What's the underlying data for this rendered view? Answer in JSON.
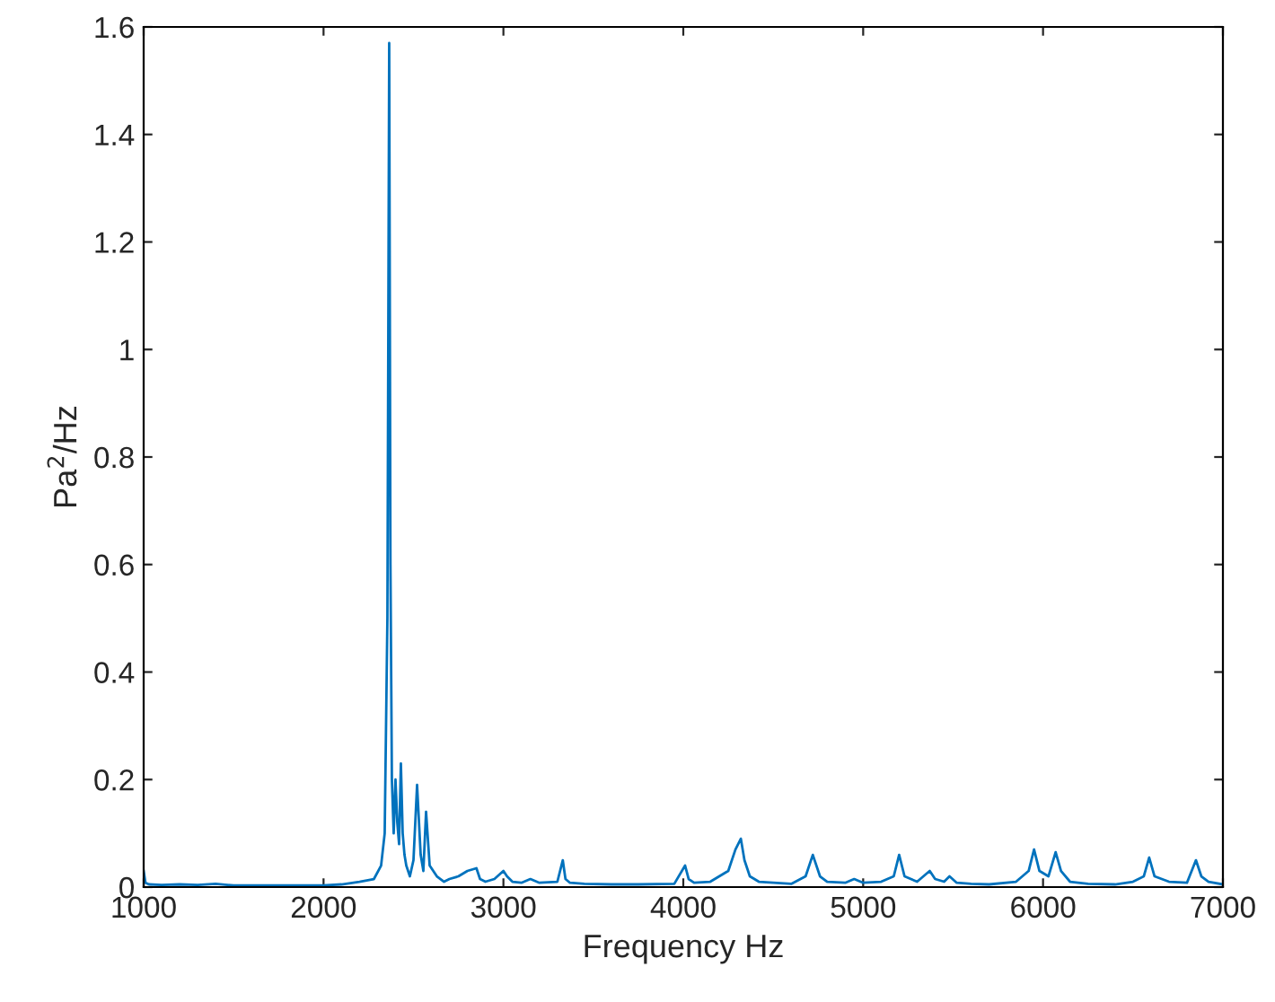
{
  "chart_data": {
    "type": "line",
    "xlabel": "Frequency Hz",
    "ylabel": "Pa$^{2}$/Hz",
    "x": [
      1000,
      1010,
      1030,
      1100,
      1200,
      1300,
      1400,
      1500,
      1700,
      1900,
      2000,
      2100,
      2200,
      2280,
      2320,
      2340,
      2355,
      2365,
      2372,
      2380,
      2390,
      2400,
      2410,
      2420,
      2430,
      2440,
      2450,
      2460,
      2480,
      2500,
      2520,
      2540,
      2555,
      2570,
      2590,
      2610,
      2630,
      2650,
      2670,
      2700,
      2750,
      2800,
      2850,
      2870,
      2900,
      2950,
      3000,
      3020,
      3050,
      3100,
      3150,
      3200,
      3300,
      3330,
      3345,
      3370,
      3450,
      3600,
      3750,
      3950,
      4010,
      4030,
      4060,
      4150,
      4250,
      4290,
      4320,
      4340,
      4370,
      4420,
      4500,
      4600,
      4680,
      4720,
      4760,
      4800,
      4900,
      4950,
      5000,
      5100,
      5170,
      5200,
      5230,
      5300,
      5370,
      5400,
      5450,
      5480,
      5520,
      5600,
      5700,
      5850,
      5920,
      5950,
      5980,
      6030,
      6070,
      6100,
      6150,
      6250,
      6400,
      6500,
      6560,
      6590,
      6620,
      6700,
      6800,
      6850,
      6880,
      6920,
      7000
    ],
    "series": [
      {
        "color": "#0072bd",
        "values": [
          0.03,
          0.008,
          0.005,
          0.004,
          0.005,
          0.004,
          0.006,
          0.003,
          0.003,
          0.003,
          0.003,
          0.005,
          0.01,
          0.015,
          0.04,
          0.1,
          0.5,
          1.57,
          0.6,
          0.2,
          0.1,
          0.2,
          0.12,
          0.08,
          0.23,
          0.1,
          0.06,
          0.04,
          0.02,
          0.05,
          0.19,
          0.06,
          0.03,
          0.14,
          0.04,
          0.03,
          0.02,
          0.015,
          0.01,
          0.015,
          0.02,
          0.03,
          0.035,
          0.015,
          0.01,
          0.015,
          0.03,
          0.02,
          0.01,
          0.008,
          0.015,
          0.008,
          0.01,
          0.05,
          0.015,
          0.008,
          0.006,
          0.005,
          0.005,
          0.006,
          0.04,
          0.015,
          0.008,
          0.01,
          0.03,
          0.07,
          0.09,
          0.05,
          0.02,
          0.01,
          0.008,
          0.006,
          0.02,
          0.06,
          0.02,
          0.01,
          0.008,
          0.015,
          0.008,
          0.01,
          0.02,
          0.06,
          0.02,
          0.01,
          0.03,
          0.015,
          0.01,
          0.02,
          0.008,
          0.006,
          0.005,
          0.01,
          0.03,
          0.07,
          0.03,
          0.02,
          0.065,
          0.03,
          0.01,
          0.006,
          0.005,
          0.01,
          0.02,
          0.055,
          0.02,
          0.01,
          0.008,
          0.05,
          0.02,
          0.01,
          0.005
        ]
      }
    ],
    "xlim": [
      1000,
      7000
    ],
    "ylim": [
      0,
      1.6
    ],
    "xticks": [
      1000,
      2000,
      3000,
      4000,
      5000,
      6000,
      7000
    ],
    "yticks": [
      0,
      0.2,
      0.4,
      0.6,
      0.8,
      1,
      1.2,
      1.4,
      1.6
    ],
    "grid": false,
    "legend": false
  }
}
